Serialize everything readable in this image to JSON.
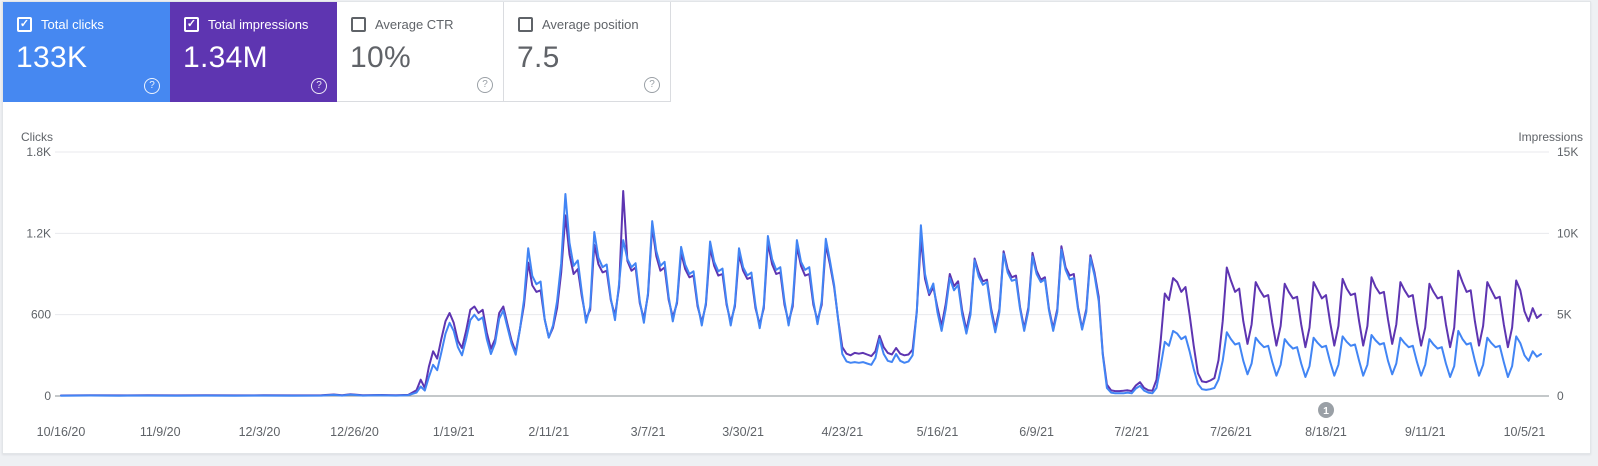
{
  "app": "Google Search Console — Performance",
  "ui": {
    "help_glyph": "?",
    "check_glyph": "✓",
    "accent_blue": "#4688F1",
    "accent_purple": "#5E35B1"
  },
  "cards": [
    {
      "label": "Total clicks",
      "value": "133K",
      "checked": true,
      "bg": "#4688F1"
    },
    {
      "label": "Total impressions",
      "value": "1.34M",
      "checked": true,
      "bg": "#5E35B1"
    },
    {
      "label": "Average CTR",
      "value": "10%",
      "checked": false,
      "bg": "#ffffff"
    },
    {
      "label": "Average position",
      "value": "7.5",
      "checked": false,
      "bg": "#ffffff"
    }
  ],
  "chart_data": {
    "type": "line",
    "left_axis": {
      "title": "Clicks",
      "ticks": [
        "1.8K",
        "1.2K",
        "600",
        "0"
      ],
      "max": 1800
    },
    "right_axis": {
      "title": "Impressions",
      "ticks": [
        "15K",
        "10K",
        "5K",
        "0"
      ],
      "max": 15000
    },
    "x_ticks": [
      "10/16/20",
      "11/9/20",
      "12/3/20",
      "12/26/20",
      "1/19/21",
      "2/11/21",
      "3/7/21",
      "3/30/21",
      "4/23/21",
      "5/16/21",
      "6/9/21",
      "7/2/21",
      "7/26/21",
      "8/18/21",
      "9/11/21",
      "10/5/21"
    ],
    "tick_days": [
      0,
      24,
      48,
      71,
      95,
      118,
      142,
      165,
      189,
      212,
      236,
      259,
      283,
      306,
      330,
      354
    ],
    "days_total": 358,
    "grid": true,
    "legend_position": "none",
    "annotation": {
      "label": "1",
      "day": 306
    },
    "series": [
      {
        "name": "Total clicks",
        "color": "#4285F4",
        "axis": "left"
      },
      {
        "name": "Total impressions",
        "color": "#5E35B1",
        "axis": "right"
      }
    ],
    "points": [
      [
        0,
        2,
        30
      ],
      [
        7,
        4,
        50
      ],
      [
        14,
        2,
        35
      ],
      [
        21,
        3,
        45
      ],
      [
        28,
        2,
        38
      ],
      [
        35,
        3,
        48
      ],
      [
        42,
        2,
        36
      ],
      [
        49,
        3,
        46
      ],
      [
        56,
        2,
        38
      ],
      [
        63,
        3,
        42
      ],
      [
        66,
        8,
        90
      ],
      [
        68,
        3,
        45
      ],
      [
        70,
        10,
        110
      ],
      [
        73,
        3,
        42
      ],
      [
        77,
        5,
        60
      ],
      [
        81,
        3,
        45
      ],
      [
        84,
        6,
        70
      ],
      [
        86,
        25,
        350
      ],
      [
        87,
        70,
        1000
      ],
      [
        88,
        40,
        500
      ],
      [
        89,
        140,
        1800
      ],
      [
        90,
        230,
        2750
      ],
      [
        91,
        190,
        2300
      ],
      [
        92,
        320,
        3500
      ],
      [
        93,
        460,
        4600
      ],
      [
        94,
        540,
        5100
      ],
      [
        95,
        480,
        4500
      ],
      [
        96,
        360,
        3400
      ],
      [
        97,
        300,
        2950
      ],
      [
        98,
        420,
        4000
      ],
      [
        99,
        560,
        5300
      ],
      [
        100,
        600,
        5500
      ],
      [
        101,
        560,
        5100
      ],
      [
        102,
        580,
        5300
      ],
      [
        103,
        420,
        3900
      ],
      [
        104,
        310,
        2900
      ],
      [
        105,
        390,
        3500
      ],
      [
        106,
        570,
        5100
      ],
      [
        107,
        630,
        5500
      ],
      [
        108,
        505,
        4400
      ],
      [
        109,
        385,
        3400
      ],
      [
        110,
        305,
        2700
      ],
      [
        111,
        490,
        4100
      ],
      [
        112,
        710,
        5600
      ],
      [
        113,
        1090,
        8200
      ],
      [
        114,
        885,
        6800
      ],
      [
        115,
        825,
        6400
      ],
      [
        116,
        845,
        6500
      ],
      [
        117,
        565,
        4700
      ],
      [
        118,
        430,
        3600
      ],
      [
        119,
        520,
        4200
      ],
      [
        120,
        700,
        5400
      ],
      [
        121,
        980,
        7600
      ],
      [
        122,
        1490,
        11100
      ],
      [
        123,
        1130,
        8700
      ],
      [
        124,
        960,
        7500
      ],
      [
        125,
        1000,
        7800
      ],
      [
        126,
        760,
        6100
      ],
      [
        127,
        540,
        4750
      ],
      [
        128,
        660,
        5300
      ],
      [
        129,
        1210,
        9300
      ],
      [
        130,
        1020,
        8100
      ],
      [
        131,
        950,
        7600
      ],
      [
        132,
        970,
        7700
      ],
      [
        133,
        720,
        5900
      ],
      [
        134,
        560,
        4950
      ],
      [
        135,
        830,
        6700
      ],
      [
        136,
        1150,
        12600
      ],
      [
        137,
        1010,
        8300
      ],
      [
        138,
        950,
        7700
      ],
      [
        139,
        980,
        7900
      ],
      [
        140,
        700,
        5700
      ],
      [
        141,
        540,
        4750
      ],
      [
        142,
        760,
        6200
      ],
      [
        143,
        1290,
        10400
      ],
      [
        144,
        1070,
        8600
      ],
      [
        145,
        960,
        7700
      ],
      [
        146,
        990,
        7900
      ],
      [
        147,
        730,
        5900
      ],
      [
        148,
        550,
        4850
      ],
      [
        149,
        700,
        5700
      ],
      [
        150,
        1100,
        8800
      ],
      [
        151,
        970,
        7800
      ],
      [
        152,
        900,
        7300
      ],
      [
        153,
        920,
        7400
      ],
      [
        154,
        680,
        5500
      ],
      [
        155,
        520,
        4550
      ],
      [
        156,
        690,
        5600
      ],
      [
        157,
        1140,
        9100
      ],
      [
        158,
        990,
        8000
      ],
      [
        159,
        920,
        7400
      ],
      [
        160,
        940,
        7500
      ],
      [
        161,
        690,
        5600
      ],
      [
        162,
        520,
        4550
      ],
      [
        163,
        680,
        5500
      ],
      [
        164,
        1090,
        8700
      ],
      [
        165,
        950,
        7700
      ],
      [
        166,
        890,
        7200
      ],
      [
        167,
        910,
        7300
      ],
      [
        168,
        670,
        5400
      ],
      [
        169,
        500,
        4400
      ],
      [
        170,
        670,
        5400
      ],
      [
        171,
        1180,
        9400
      ],
      [
        172,
        1010,
        8100
      ],
      [
        173,
        930,
        7500
      ],
      [
        174,
        950,
        7600
      ],
      [
        175,
        700,
        5600
      ],
      [
        176,
        520,
        4550
      ],
      [
        177,
        690,
        5500
      ],
      [
        178,
        1150,
        9200
      ],
      [
        179,
        990,
        8000
      ],
      [
        180,
        930,
        7400
      ],
      [
        181,
        950,
        7500
      ],
      [
        182,
        700,
        5600
      ],
      [
        183,
        530,
        4650
      ],
      [
        184,
        700,
        5600
      ],
      [
        185,
        1160,
        9300
      ],
      [
        186,
        1000,
        8100
      ],
      [
        187,
        820,
        6700
      ],
      [
        188,
        560,
        4700
      ],
      [
        189,
        310,
        3000
      ],
      [
        190,
        255,
        2600
      ],
      [
        191,
        245,
        2500
      ],
      [
        192,
        250,
        2650
      ],
      [
        193,
        245,
        2600
      ],
      [
        194,
        250,
        2650
      ],
      [
        195,
        240,
        2550
      ],
      [
        196,
        230,
        2450
      ],
      [
        197,
        280,
        2750
      ],
      [
        198,
        420,
        3700
      ],
      [
        199,
        310,
        3000
      ],
      [
        200,
        260,
        2650
      ],
      [
        201,
        250,
        2550
      ],
      [
        202,
        310,
        2950
      ],
      [
        203,
        260,
        2600
      ],
      [
        204,
        245,
        2500
      ],
      [
        205,
        255,
        2550
      ],
      [
        206,
        300,
        2850
      ],
      [
        207,
        620,
        5200
      ],
      [
        208,
        1260,
        9700
      ],
      [
        209,
        900,
        7200
      ],
      [
        210,
        760,
        6200
      ],
      [
        211,
        830,
        6700
      ],
      [
        212,
        620,
        5450
      ],
      [
        213,
        480,
        4300
      ],
      [
        214,
        640,
        5650
      ],
      [
        215,
        870,
        7500
      ],
      [
        216,
        780,
        6750
      ],
      [
        217,
        820,
        7050
      ],
      [
        218,
        600,
        5250
      ],
      [
        219,
        460,
        4050
      ],
      [
        220,
        600,
        5250
      ],
      [
        221,
        1000,
        8450
      ],
      [
        222,
        880,
        7600
      ],
      [
        223,
        820,
        7050
      ],
      [
        224,
        840,
        7150
      ],
      [
        225,
        620,
        5350
      ],
      [
        226,
        470,
        4150
      ],
      [
        227,
        620,
        5350
      ],
      [
        228,
        1050,
        8900
      ],
      [
        229,
        910,
        7800
      ],
      [
        230,
        850,
        7300
      ],
      [
        231,
        860,
        7400
      ],
      [
        232,
        640,
        5450
      ],
      [
        233,
        480,
        4150
      ],
      [
        234,
        630,
        5450
      ],
      [
        235,
        1030,
        8800
      ],
      [
        236,
        900,
        7700
      ],
      [
        237,
        840,
        7150
      ],
      [
        238,
        860,
        7300
      ],
      [
        239,
        630,
        5350
      ],
      [
        240,
        480,
        4150
      ],
      [
        241,
        620,
        5350
      ],
      [
        242,
        1080,
        9200
      ],
      [
        243,
        930,
        7900
      ],
      [
        244,
        860,
        7400
      ],
      [
        245,
        870,
        7500
      ],
      [
        246,
        640,
        5450
      ],
      [
        247,
        490,
        4150
      ],
      [
        248,
        620,
        5350
      ],
      [
        249,
        1020,
        8650
      ],
      [
        250,
        890,
        7600
      ],
      [
        251,
        700,
        6100
      ],
      [
        252,
        300,
        2600
      ],
      [
        253,
        60,
        700
      ],
      [
        254,
        25,
        350
      ],
      [
        255,
        20,
        300
      ],
      [
        256,
        20,
        300
      ],
      [
        257,
        20,
        320
      ],
      [
        258,
        25,
        350
      ],
      [
        259,
        20,
        300
      ],
      [
        260,
        55,
        650
      ],
      [
        261,
        75,
        850
      ],
      [
        262,
        40,
        500
      ],
      [
        263,
        25,
        350
      ],
      [
        264,
        20,
        320
      ],
      [
        265,
        60,
        1000
      ],
      [
        266,
        220,
        3400
      ],
      [
        267,
        400,
        6300
      ],
      [
        268,
        370,
        5900
      ],
      [
        269,
        480,
        7250
      ],
      [
        270,
        460,
        7000
      ],
      [
        271,
        420,
        6400
      ],
      [
        272,
        440,
        6700
      ],
      [
        273,
        330,
        5000
      ],
      [
        274,
        200,
        3100
      ],
      [
        275,
        90,
        1400
      ],
      [
        276,
        50,
        900
      ],
      [
        277,
        45,
        850
      ],
      [
        278,
        50,
        950
      ],
      [
        279,
        60,
        1100
      ],
      [
        280,
        120,
        2200
      ],
      [
        281,
        260,
        4600
      ],
      [
        282,
        470,
        7900
      ],
      [
        283,
        420,
        7100
      ],
      [
        284,
        380,
        6400
      ],
      [
        285,
        390,
        6600
      ],
      [
        286,
        260,
        4600
      ],
      [
        287,
        160,
        3200
      ],
      [
        288,
        240,
        4400
      ],
      [
        289,
        430,
        7000
      ],
      [
        290,
        390,
        6500
      ],
      [
        291,
        360,
        6100
      ],
      [
        292,
        370,
        6200
      ],
      [
        293,
        250,
        4500
      ],
      [
        294,
        150,
        3100
      ],
      [
        295,
        230,
        4300
      ],
      [
        296,
        420,
        6900
      ],
      [
        297,
        380,
        6400
      ],
      [
        298,
        350,
        6000
      ],
      [
        299,
        360,
        6100
      ],
      [
        300,
        240,
        4400
      ],
      [
        301,
        140,
        3000
      ],
      [
        302,
        220,
        4200
      ],
      [
        303,
        430,
        7000
      ],
      [
        304,
        390,
        6500
      ],
      [
        305,
        360,
        6000
      ],
      [
        306,
        370,
        6200
      ],
      [
        307,
        250,
        4500
      ],
      [
        308,
        150,
        3100
      ],
      [
        309,
        230,
        4300
      ],
      [
        310,
        440,
        7200
      ],
      [
        311,
        400,
        6600
      ],
      [
        312,
        370,
        6200
      ],
      [
        313,
        380,
        6300
      ],
      [
        314,
        260,
        4600
      ],
      [
        315,
        150,
        3100
      ],
      [
        316,
        230,
        4300
      ],
      [
        317,
        450,
        7300
      ],
      [
        318,
        410,
        6700
      ],
      [
        319,
        380,
        6300
      ],
      [
        320,
        390,
        6400
      ],
      [
        321,
        260,
        4700
      ],
      [
        322,
        160,
        3200
      ],
      [
        323,
        240,
        4400
      ],
      [
        324,
        430,
        7000
      ],
      [
        325,
        390,
        6500
      ],
      [
        326,
        360,
        6100
      ],
      [
        327,
        370,
        6200
      ],
      [
        328,
        250,
        4500
      ],
      [
        329,
        150,
        3100
      ],
      [
        330,
        230,
        4200
      ],
      [
        331,
        420,
        6900
      ],
      [
        332,
        380,
        6400
      ],
      [
        333,
        350,
        6000
      ],
      [
        334,
        360,
        6100
      ],
      [
        335,
        240,
        4400
      ],
      [
        336,
        140,
        3000
      ],
      [
        337,
        220,
        4200
      ],
      [
        338,
        480,
        7700
      ],
      [
        339,
        420,
        7000
      ],
      [
        340,
        380,
        6400
      ],
      [
        341,
        390,
        6500
      ],
      [
        342,
        260,
        4600
      ],
      [
        343,
        150,
        3100
      ],
      [
        344,
        230,
        4300
      ],
      [
        345,
        430,
        7000
      ],
      [
        346,
        390,
        6500
      ],
      [
        347,
        360,
        6000
      ],
      [
        348,
        370,
        6100
      ],
      [
        349,
        250,
        4400
      ],
      [
        350,
        140,
        3000
      ],
      [
        351,
        220,
        4200
      ],
      [
        352,
        440,
        7100
      ],
      [
        353,
        390,
        6500
      ],
      [
        354,
        300,
        5200
      ],
      [
        355,
        260,
        4600
      ],
      [
        356,
        330,
        5400
      ],
      [
        357,
        290,
        4800
      ],
      [
        358,
        310,
        5000
      ]
    ]
  }
}
